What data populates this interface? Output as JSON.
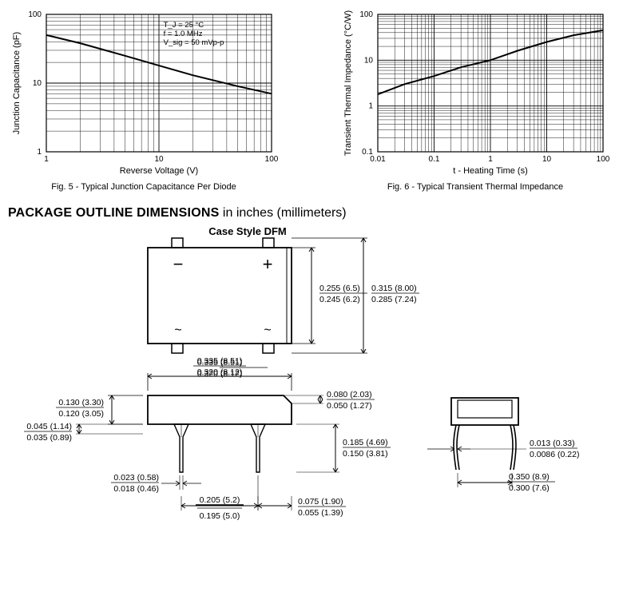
{
  "fig5": {
    "type": "line-loglog",
    "title": "Fig. 5 - Typical Junction Capacitance Per Diode",
    "xlabel": "Reverse Voltage (V)",
    "ylabel": "Junction Capacitance (pF)",
    "xlim": [
      1,
      100
    ],
    "ylim": [
      1,
      100
    ],
    "xticks": [
      1,
      10,
      100
    ],
    "yticks": [
      1,
      10,
      100
    ],
    "legend_lines": [
      "T_J = 25 °C",
      "f = 1.0 MHz",
      "V_sig = 50 mVp-p"
    ],
    "series": {
      "x": [
        1,
        2,
        5,
        10,
        20,
        50,
        100
      ],
      "y": [
        50,
        38,
        25,
        18,
        13,
        9,
        7
      ]
    },
    "line_color": "#000000",
    "line_width": 2,
    "grid_color": "#000000",
    "background_color": "#ffffff",
    "label_fontsize": 11
  },
  "fig6": {
    "type": "line-loglog",
    "title": "Fig. 6 - Typical Transient Thermal Impedance",
    "xlabel": "t - Heating Time (s)",
    "ylabel": "Transient Thermal Impedance (°C/W)",
    "xlim": [
      0.01,
      100
    ],
    "ylim": [
      0.1,
      100
    ],
    "xticks": [
      0.01,
      0.1,
      1,
      10,
      100
    ],
    "yticks": [
      0.1,
      1,
      10,
      100
    ],
    "series": {
      "x": [
        0.01,
        0.03,
        0.1,
        0.3,
        1,
        3,
        10,
        30,
        100
      ],
      "y": [
        1.8,
        3,
        4.5,
        7,
        10,
        16,
        25,
        35,
        45
      ]
    },
    "line_color": "#000000",
    "line_width": 2,
    "grid_color": "#000000",
    "background_color": "#ffffff",
    "label_fontsize": 11
  },
  "section": {
    "title_bold": "PACKAGE OUTLINE DIMENSIONS",
    "title_rest": " in inches (millimeters)"
  },
  "package": {
    "case_style": "Case Style DFM",
    "dims": {
      "h_body_max": "0.255 (6.5)",
      "h_body_min": "0.245 (6.2)",
      "h_total_max": "0.315 (8.00)",
      "h_total_min": "0.285 (7.24)",
      "w_body_max": "0.335 (8.51)",
      "w_body_min": "0.320 (8.12)",
      "t_body_max": "0.130 (3.30)",
      "t_body_min": "0.120 (3.05)",
      "stand_max": "0.045 (1.14)",
      "stand_min": "0.035 (0.89)",
      "pin_w_max": "0.023 (0.58)",
      "pin_w_min": "0.018 (0.46)",
      "pitch_ac_max": "0.205 (5.2)",
      "pitch_ac_min": "0.195 (5.0)",
      "chamfer_max": "0.080 (2.03)",
      "chamfer_min": "0.050 (1.27)",
      "pin_len_max": "0.185 (4.69)",
      "pin_len_min": "0.150 (3.81)",
      "pin_off_max": "0.075 (1.90)",
      "pin_off_min": "0.055 (1.39)",
      "lead_t_max": "0.013 (0.33)",
      "lead_t_min": "0.0086 (0.22)",
      "row_pitch_max": "0.350 (8.9)",
      "row_pitch_min": "0.300 (7.6)"
    }
  }
}
